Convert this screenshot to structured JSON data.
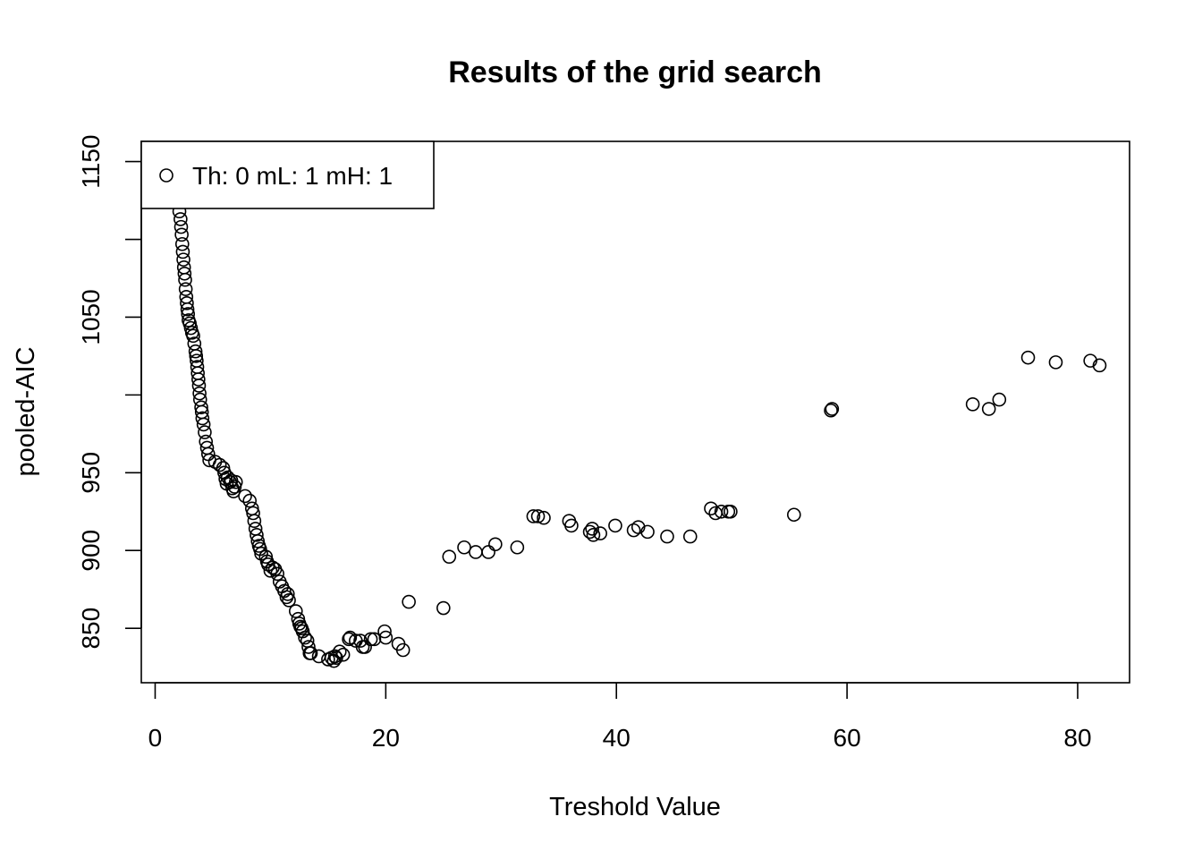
{
  "chart_data": {
    "type": "scatter",
    "title": "Results of the grid search",
    "xlabel": "Treshold Value",
    "ylabel": "pooled-AIC",
    "xlim": [
      -1.2,
      84.5
    ],
    "ylim": [
      815,
      1163
    ],
    "x_ticks": [
      0,
      20,
      40,
      60,
      80
    ],
    "y_ticks": [
      850,
      900,
      950,
      1000,
      1050,
      1100,
      1150
    ],
    "y_tick_labels": [
      "850",
      "900",
      "950",
      "",
      "1050",
      "",
      "1150"
    ],
    "grid": false,
    "legend": {
      "position": "top-left",
      "marker": "open-circle",
      "entries": [
        "Th: 0 mL: 1 mH: 1"
      ]
    },
    "marker_color": "#000000",
    "series": [
      {
        "x": [
          2.1,
          2.2,
          2.25,
          2.3,
          2.35,
          2.4,
          2.45,
          2.5,
          2.55,
          2.6,
          2.65,
          2.7,
          2.75,
          2.8,
          2.85,
          2.9,
          3.0,
          3.1,
          3.2,
          3.3,
          3.4,
          3.5,
          3.55,
          3.6,
          3.65,
          3.7,
          3.75,
          3.8,
          3.85,
          3.9,
          4.0,
          4.05,
          4.1,
          4.2,
          4.3,
          4.4,
          4.5,
          4.6,
          4.7,
          5.2,
          5.6,
          5.9,
          6.0,
          6.1,
          6.2,
          6.3,
          6.5,
          6.6,
          6.7,
          6.8,
          6.9,
          7.0,
          7.8,
          8.2,
          8.4,
          8.5,
          8.6,
          8.7,
          8.8,
          8.9,
          9.0,
          9.1,
          9.2,
          9.6,
          9.7,
          9.8,
          10.0,
          10.2,
          10.4,
          10.6,
          10.8,
          11.0,
          11.2,
          11.4,
          11.5,
          11.6,
          12.2,
          12.4,
          12.5,
          12.6,
          12.7,
          12.8,
          13.0,
          13.2,
          13.3,
          13.4,
          13.5,
          14.2,
          15.0,
          15.3,
          15.5,
          15.6,
          15.7,
          16.0,
          16.3,
          16.8,
          16.9,
          17.4,
          17.8,
          18.0,
          18.2,
          18.7,
          19.0,
          19.9,
          20.0,
          21.1,
          21.5,
          22.0,
          25.0,
          25.5,
          26.8,
          27.8,
          28.9,
          29.5,
          31.4,
          32.8,
          33.2,
          33.7,
          35.9,
          36.1,
          37.7,
          37.9,
          38.0,
          38.6,
          39.9,
          41.5,
          41.9,
          42.7,
          44.4,
          46.4,
          48.2,
          48.6,
          49.1,
          49.7,
          49.9,
          55.4,
          58.6,
          58.7,
          70.9,
          72.3,
          73.2,
          75.7,
          78.1,
          81.1,
          81.9
        ],
        "y": [
          1118,
          1113,
          1108,
          1103,
          1097,
          1092,
          1087,
          1082,
          1078,
          1074,
          1068,
          1063,
          1059,
          1055,
          1052,
          1048,
          1046,
          1043,
          1040,
          1038,
          1033,
          1028,
          1025,
          1022,
          1018,
          1014,
          1010,
          1006,
          1001,
          997,
          992,
          989,
          985,
          981,
          976,
          970,
          966,
          962,
          958,
          957,
          955,
          953,
          950,
          946,
          943,
          947,
          944,
          945,
          940,
          938,
          941,
          944,
          935,
          932,
          927,
          924,
          919,
          914,
          910,
          906,
          903,
          901,
          898,
          896,
          893,
          891,
          887,
          889,
          888,
          885,
          880,
          877,
          874,
          870,
          872,
          868,
          861,
          856,
          853,
          851,
          850,
          848,
          844,
          842,
          838,
          834,
          834,
          832,
          830,
          831,
          829,
          832,
          831,
          835,
          833,
          843,
          844,
          842,
          842,
          838,
          838,
          843,
          843,
          848,
          844,
          840,
          836,
          867,
          863,
          896,
          902,
          899,
          899,
          904,
          902,
          922,
          922,
          921,
          919,
          916,
          912,
          914,
          910,
          911,
          916,
          913,
          915,
          912,
          909,
          909,
          927,
          924,
          925,
          925,
          925,
          923,
          990,
          991,
          994,
          991,
          997,
          1024,
          1021,
          1022,
          1019
        ]
      }
    ]
  }
}
